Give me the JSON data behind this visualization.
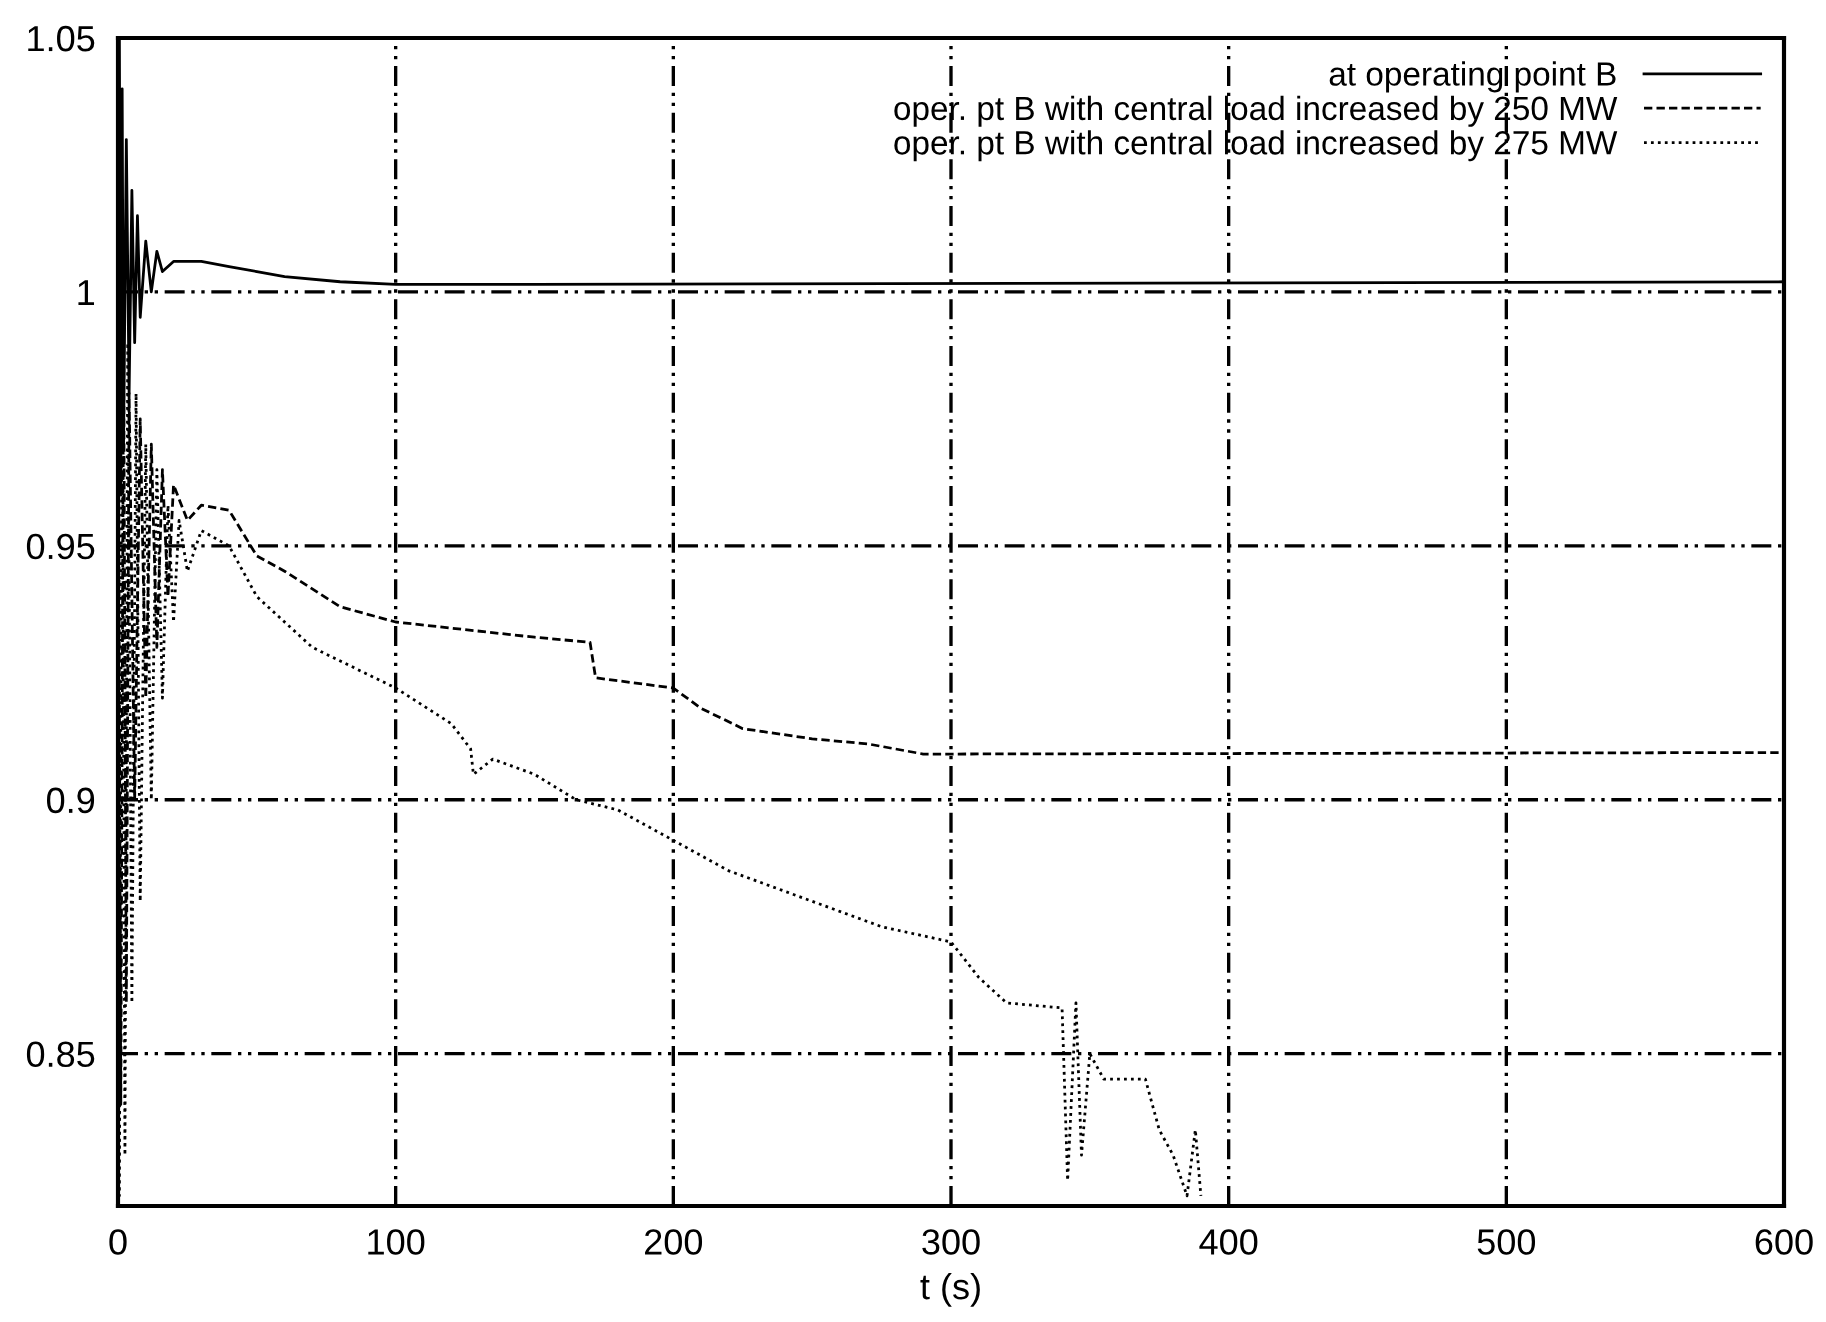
{
  "chart_data": {
    "type": "line",
    "xlabel": "t (s)",
    "xlim": [
      0,
      600
    ],
    "xticks": [
      0,
      100,
      200,
      300,
      400,
      500,
      600
    ],
    "ylim": [
      0.82,
      1.05
    ],
    "yticks": [
      0.85,
      0.9,
      0.95,
      {
        "value": 1,
        "label": "1"
      },
      1.05
    ],
    "grid": true,
    "legend": "top right",
    "series": [
      {
        "name": "at operating point B",
        "color": "#000000",
        "line_style": "solid",
        "x": [
          0,
          0.5,
          1,
          1.5,
          2,
          3,
          4,
          5,
          6,
          7,
          8,
          10,
          12,
          14,
          16,
          20,
          30,
          40,
          50,
          60,
          80,
          100,
          150,
          600
        ],
        "values": [
          1.0,
          1.05,
          0.96,
          1.04,
          0.97,
          1.03,
          0.98,
          1.02,
          0.99,
          1.015,
          0.995,
          1.01,
          1.0,
          1.008,
          1.004,
          1.006,
          1.006,
          1.005,
          1.004,
          1.003,
          1.002,
          1.0015,
          1.0015,
          1.002
        ]
      },
      {
        "name": "oper. pt B with central load increased by 250 MW",
        "color": "#000000",
        "line_style": "dashed",
        "x": [
          0,
          1,
          2,
          3,
          4,
          6,
          8,
          10,
          12,
          14,
          16,
          18,
          20,
          25,
          30,
          40,
          50,
          60,
          80,
          100,
          150,
          170,
          172,
          200,
          210,
          225,
          250,
          270,
          290,
          300,
          600
        ],
        "values": [
          1.0,
          0.84,
          0.99,
          0.86,
          0.98,
          0.9,
          0.975,
          0.92,
          0.97,
          0.93,
          0.965,
          0.94,
          0.962,
          0.955,
          0.958,
          0.957,
          0.948,
          0.945,
          0.938,
          0.935,
          0.932,
          0.931,
          0.924,
          0.922,
          0.918,
          0.914,
          0.912,
          0.911,
          0.909,
          0.909,
          0.9093
        ]
      },
      {
        "name": "oper. pt B with central load increased by 275 MW",
        "color": "#000000",
        "line_style": "dotted",
        "x": [
          0,
          0.5,
          1.5,
          2.5,
          3.5,
          5,
          6.5,
          8,
          10,
          12,
          14,
          16,
          18,
          20,
          22,
          25,
          30,
          40,
          50,
          70,
          100,
          120,
          127,
          128,
          135,
          150,
          165,
          180,
          200,
          220,
          250,
          275,
          300,
          310,
          320,
          340,
          342,
          345,
          347,
          350,
          355,
          370,
          375,
          380,
          385,
          388,
          390
        ],
        "values": [
          1.0,
          0.822,
          1.0,
          0.83,
          0.99,
          0.86,
          0.98,
          0.88,
          0.97,
          0.9,
          0.965,
          0.92,
          0.958,
          0.935,
          0.955,
          0.945,
          0.953,
          0.95,
          0.94,
          0.93,
          0.922,
          0.915,
          0.91,
          0.905,
          0.908,
          0.905,
          0.9,
          0.898,
          0.892,
          0.886,
          0.88,
          0.875,
          0.872,
          0.865,
          0.86,
          0.859,
          0.825,
          0.86,
          0.83,
          0.85,
          0.845,
          0.845,
          0.835,
          0.83,
          0.822,
          0.835,
          0.822
        ]
      }
    ]
  }
}
